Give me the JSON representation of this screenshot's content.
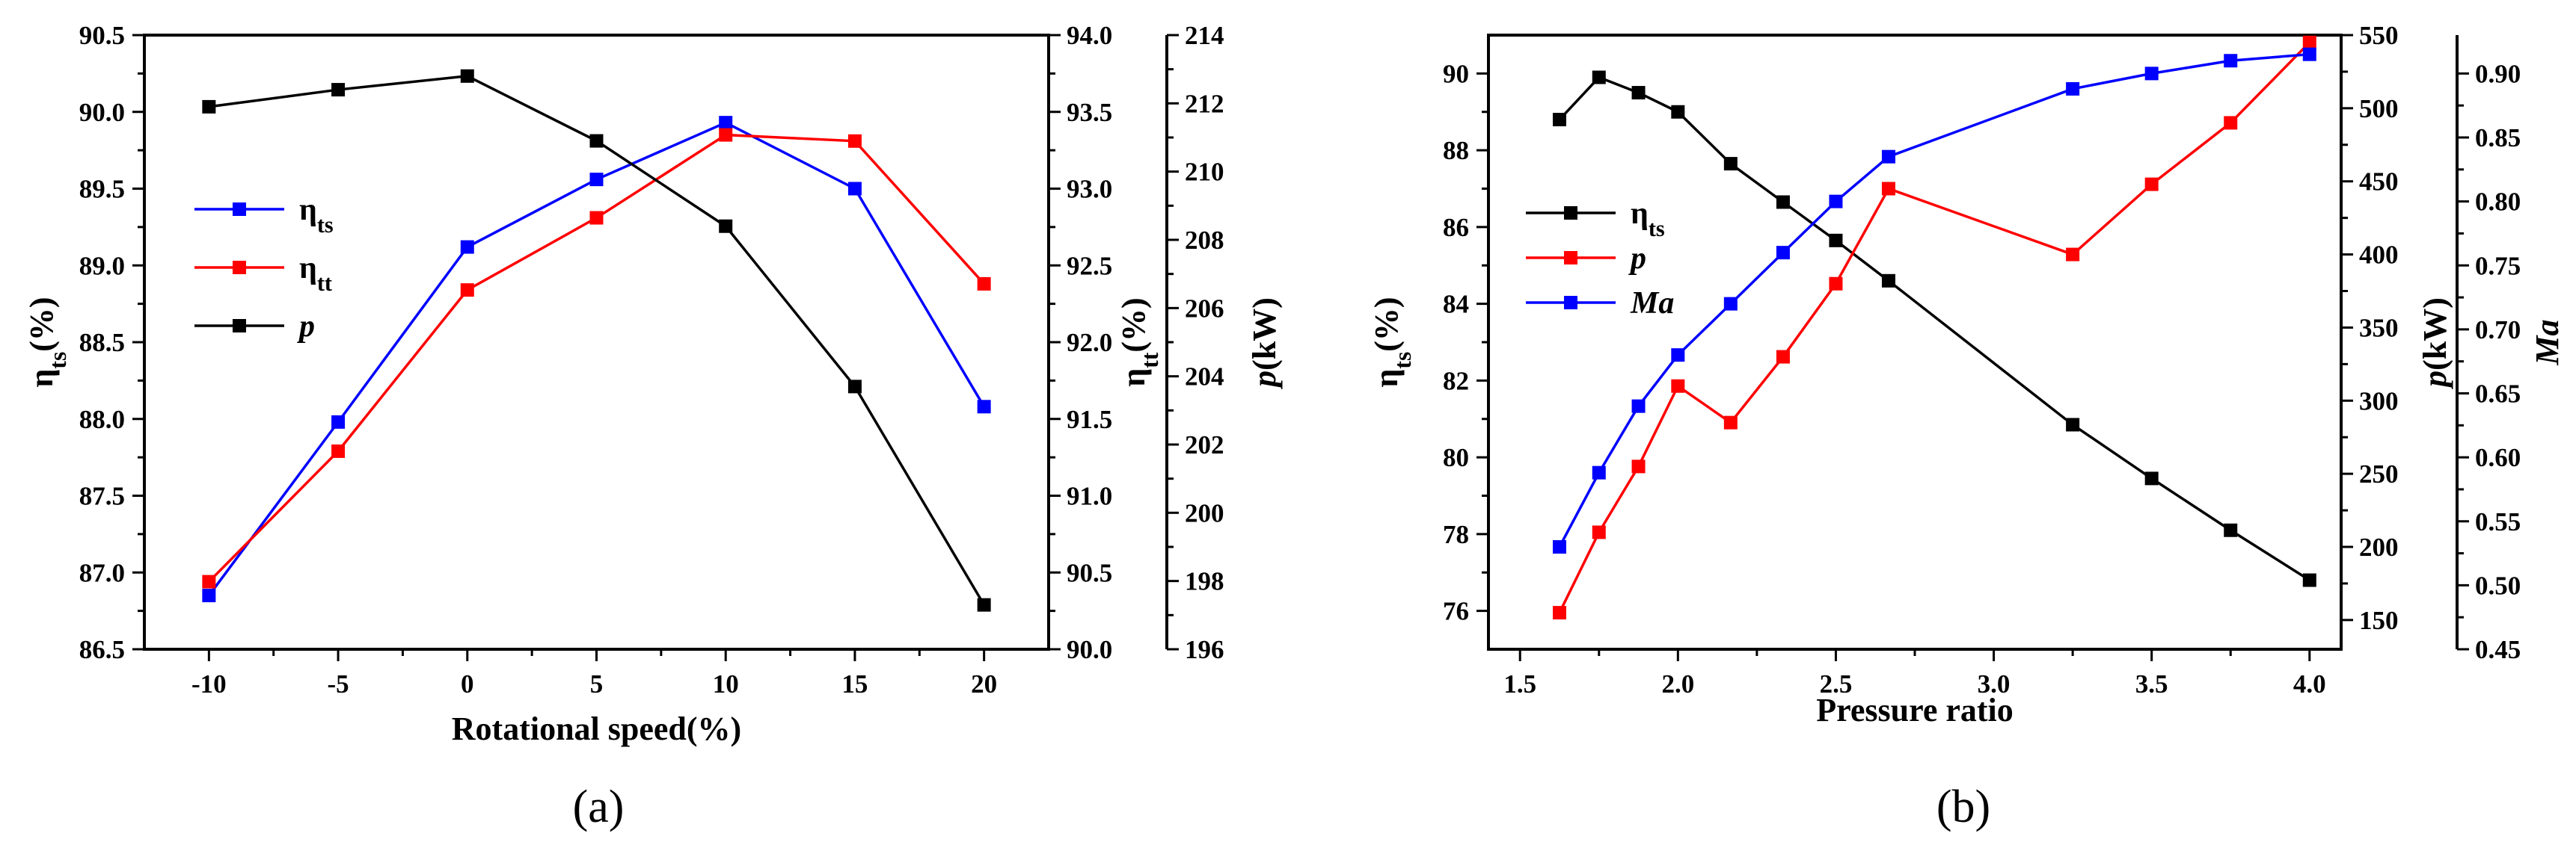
{
  "chart_data": [
    {
      "type": "line",
      "caption": "(a)",
      "x": [
        -10,
        -5,
        0,
        5,
        10,
        15,
        20
      ],
      "xlabel": "Rotational speed(%)",
      "xticks": [
        "-10",
        "-5",
        "0",
        "5",
        "10",
        "15",
        "20"
      ],
      "xlim": [
        -12.5,
        22.5
      ],
      "axes": [
        {
          "id": "left",
          "label": "ηts(%)",
          "label_main": "η",
          "label_sub": "ts",
          "label_tail": "(%)",
          "ylim": [
            86.5,
            90.5
          ],
          "ticks": [
            "86.5",
            "87.0",
            "87.5",
            "88.0",
            "88.5",
            "89.0",
            "89.5",
            "90.0",
            "90.5"
          ]
        },
        {
          "id": "right1",
          "label": "ηtt(%)",
          "label_main": "η",
          "label_sub": "tt",
          "label_tail": "(%)",
          "ylim": [
            90.0,
            94.0
          ],
          "ticks": [
            "90.0",
            "90.5",
            "91.0",
            "91.5",
            "92.0",
            "92.5",
            "93.0",
            "93.5",
            "94.0"
          ]
        },
        {
          "id": "right2",
          "label": "p(kW)",
          "label_main": "p",
          "label_tail": "(kW)",
          "ylim": [
            196,
            214
          ],
          "ticks": [
            "196",
            "198",
            "200",
            "202",
            "204",
            "206",
            "208",
            "210",
            "212",
            "214"
          ]
        }
      ],
      "series": [
        {
          "name": "ηts",
          "label_main": "η",
          "label_sub": "ts",
          "axis": "left",
          "color": "#0000ff",
          "values": [
            86.85,
            87.98,
            89.12,
            89.56,
            89.93,
            89.5,
            88.08
          ]
        },
        {
          "name": "ηtt",
          "label_main": "η",
          "label_sub": "tt",
          "axis": "right1",
          "color": "#ff0000",
          "values": [
            90.44,
            91.29,
            92.34,
            92.81,
            93.35,
            93.31,
            92.38
          ]
        },
        {
          "name": "p",
          "label_main": "p",
          "label_italic": true,
          "axis": "right2",
          "color": "#000000",
          "values": [
            211.9,
            212.4,
            212.8,
            210.9,
            208.4,
            203.7,
            197.3
          ]
        }
      ],
      "legend_position": "upper-left"
    },
    {
      "type": "line",
      "caption": "(b)",
      "x": [
        1.625,
        1.75,
        1.875,
        2.0,
        2.167,
        2.333,
        2.5,
        2.667,
        3.25,
        3.5,
        3.75,
        4.0
      ],
      "xlabel": "Pressure ratio",
      "xticks": [
        "1.5",
        "2.0",
        "2.5",
        "3.0",
        "3.5",
        "4.0"
      ],
      "xtick_values": [
        1.5,
        2.0,
        2.5,
        3.0,
        3.5,
        4.0
      ],
      "xlim": [
        1.4,
        4.1
      ],
      "axes": [
        {
          "id": "left",
          "label": "ηts(%)",
          "label_main": "η",
          "label_sub": "ts",
          "label_tail": "(%)",
          "ylim": [
            75,
            91
          ],
          "tick_values": [
            76,
            78,
            80,
            82,
            84,
            86,
            88,
            90
          ],
          "ticks": [
            "76",
            "78",
            "80",
            "82",
            "84",
            "86",
            "88",
            "90"
          ]
        },
        {
          "id": "right1",
          "label": "p(kW)",
          "label_main": "p",
          "label_tail": "(kW)",
          "ylim": [
            130,
            550
          ],
          "tick_values": [
            150,
            200,
            250,
            300,
            350,
            400,
            450,
            500,
            550
          ],
          "ticks": [
            "150",
            "200",
            "250",
            "300",
            "350",
            "400",
            "450",
            "500",
            "550"
          ]
        },
        {
          "id": "right2",
          "label": "Ma",
          "label_main": "Ma",
          "ylim": [
            0.45,
            0.93
          ],
          "tick_values": [
            0.45,
            0.5,
            0.55,
            0.6,
            0.65,
            0.7,
            0.75,
            0.8,
            0.85,
            0.9
          ],
          "ticks": [
            "0.45",
            "0.50",
            "0.55",
            "0.60",
            "0.65",
            "0.70",
            "0.75",
            "0.80",
            "0.85",
            "0.90"
          ]
        }
      ],
      "series": [
        {
          "name": "ηts",
          "label_main": "η",
          "label_sub": "ts",
          "axis": "left",
          "color": "#000000",
          "values": [
            88.8,
            89.9,
            89.5,
            89.0,
            87.65,
            86.65,
            85.65,
            84.6,
            80.85,
            79.45,
            78.1,
            76.8
          ]
        },
        {
          "name": "p",
          "label_main": "p",
          "label_italic": true,
          "axis": "right1",
          "color": "#ff0000",
          "values": [
            155,
            210,
            255,
            310,
            285,
            330,
            380,
            445,
            400,
            448,
            490,
            545
          ]
        },
        {
          "name": "Ma",
          "label_main": "Ma",
          "label_italic": true,
          "axis": "right2",
          "color": "#0000ff",
          "values": [
            0.53,
            0.588,
            0.64,
            0.68,
            0.72,
            0.76,
            0.8,
            0.835,
            0.888,
            0.9,
            0.91,
            0.915
          ]
        }
      ],
      "legend_position": "upper-left"
    }
  ]
}
